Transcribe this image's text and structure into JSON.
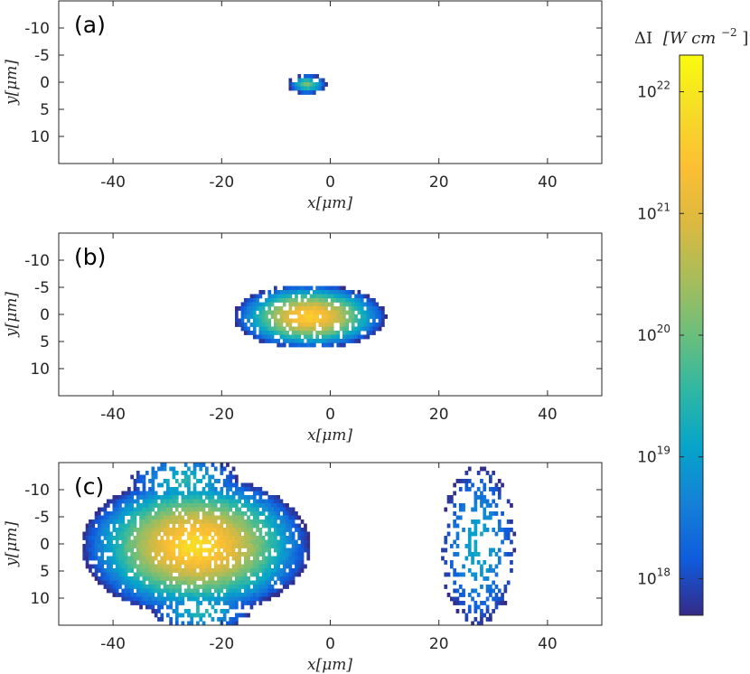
{
  "chart_data": {
    "type": "heatmap",
    "colormap": "parula",
    "colorbar": {
      "title_prefix": "ΔI",
      "title_unit": "[W cm",
      "title_exp": "−2",
      "title_close": "]",
      "scale": "log",
      "range": [
        5e+17,
        2e+22
      ],
      "ticks": [
        {
          "base": "10",
          "exp": "18",
          "value": 1e+18
        },
        {
          "base": "10",
          "exp": "19",
          "value": 1e+19
        },
        {
          "base": "10",
          "exp": "20",
          "value": 1e+20
        },
        {
          "base": "10",
          "exp": "21",
          "value": 1e+21
        },
        {
          "base": "10",
          "exp": "22",
          "value": 1e+22
        }
      ]
    },
    "axes": {
      "xlabel": "x[μm]",
      "ylabel": "y[μm]",
      "xlim": [
        -50,
        50
      ],
      "ylim": [
        -15,
        15
      ],
      "y_reversed": true,
      "xticks": [
        -40,
        -20,
        0,
        20,
        40
      ],
      "xtick_labels": [
        "-40",
        "-20",
        "0",
        "20",
        "40"
      ],
      "yticks": [
        -10,
        -5,
        0,
        5,
        10
      ],
      "ytick_labels": [
        "-10",
        "-5",
        "0",
        "5",
        "10"
      ]
    },
    "panels": [
      {
        "label": "(a)",
        "blobs": [
          {
            "cx": -4.5,
            "cy": 0,
            "rx": 3.5,
            "ry": 1.8,
            "peak": 1.2e+20,
            "density": 1.0
          }
        ]
      },
      {
        "label": "(b)",
        "blobs": [
          {
            "cx": -4,
            "cy": 0,
            "rx": 14,
            "ry": 6,
            "peak": 5e+21,
            "density": 1.0
          }
        ]
      },
      {
        "label": "(c)",
        "blobs": [
          {
            "cx": -25,
            "cy": 0,
            "rx": 21,
            "ry": 13,
            "peak": 8e+21,
            "density": 1.0
          },
          {
            "cx": -27,
            "cy": -12,
            "rx": 10,
            "ry": 5,
            "peak": 3e+19,
            "density": 0.5
          },
          {
            "cx": -24,
            "cy": 12,
            "rx": 9,
            "ry": 4,
            "peak": 3e+19,
            "density": 0.5
          },
          {
            "cx": 27,
            "cy": 0,
            "rx": 7,
            "ry": 15,
            "peak": 1.5e+19,
            "density": 0.35
          }
        ]
      }
    ]
  }
}
